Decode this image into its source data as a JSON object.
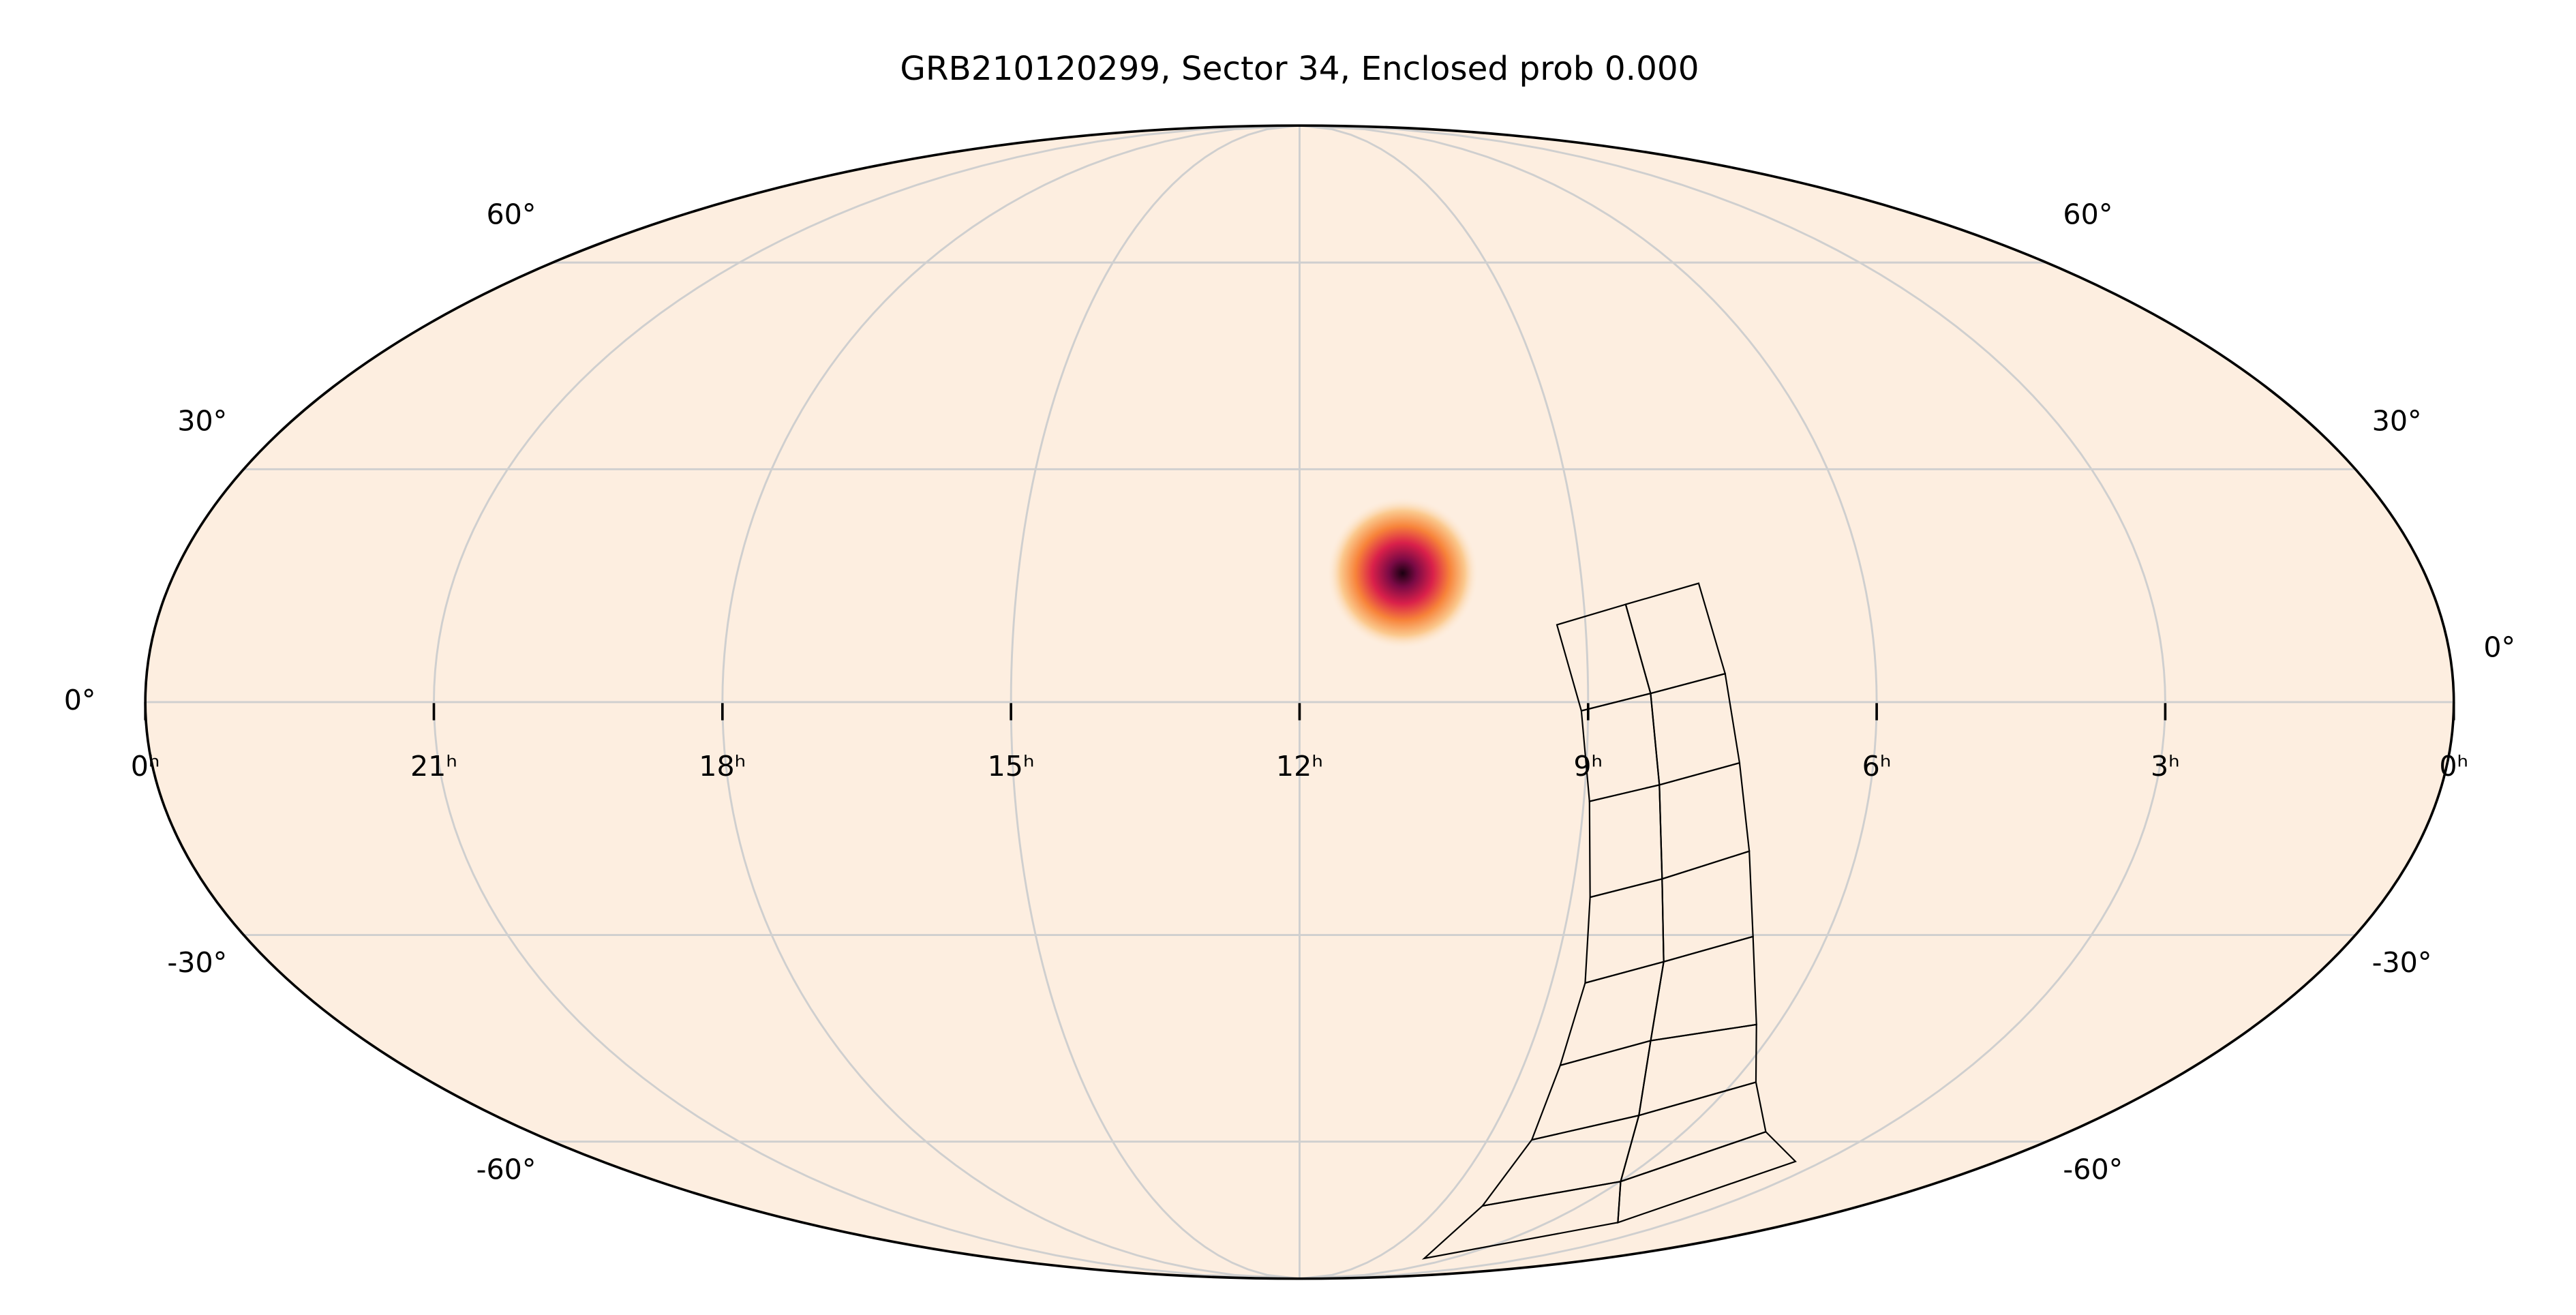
{
  "chart_data": {
    "type": "mollweide",
    "title": "GRB210120299, Sector 34, Enclosed prob 0.000",
    "background": "#fdeee0",
    "grid": true,
    "xticks": [
      {
        "value": 24,
        "label": "0ʰ"
      },
      {
        "value": 21,
        "label": "21ʰ"
      },
      {
        "value": 18,
        "label": "18ʰ"
      },
      {
        "value": 15,
        "label": "15ʰ"
      },
      {
        "value": 12,
        "label": "12ʰ"
      },
      {
        "value": 9,
        "label": "9ʰ"
      },
      {
        "value": 6,
        "label": "6ʰ"
      },
      {
        "value": 3,
        "label": "3ʰ"
      },
      {
        "value": 0,
        "label": "0ʰ"
      }
    ],
    "yticks": [
      {
        "value": 60,
        "label": "60°"
      },
      {
        "value": 30,
        "label": "30°"
      },
      {
        "value": 0,
        "label": "0°"
      },
      {
        "value": -30,
        "label": "-30°"
      },
      {
        "value": -60,
        "label": "-60°"
      }
    ],
    "localization": {
      "ra": 10.9,
      "dec": 16.4
    },
    "footprint": [
      [
        [
          9.3,
          9.8
        ],
        [
          8.56,
          12.4
        ],
        [
          7.76,
          15.1
        ]
      ],
      [
        [
          9.07,
          -1.1
        ],
        [
          8.35,
          1.1
        ],
        [
          7.57,
          3.6
        ]
      ],
      [
        [
          8.94,
          -12.6
        ],
        [
          8.22,
          -10.5
        ],
        [
          7.4,
          -7.7
        ]
      ],
      [
        [
          8.79,
          -25.0
        ],
        [
          8.04,
          -22.6
        ],
        [
          7.16,
          -19.0
        ]
      ],
      [
        [
          8.6,
          -36.5
        ],
        [
          7.76,
          -33.6
        ],
        [
          6.84,
          -30.2
        ]
      ],
      [
        [
          8.51,
          -48.2
        ],
        [
          7.49,
          -44.6
        ],
        [
          6.27,
          -42.3
        ]
      ],
      [
        [
          8.29,
          -59.7
        ],
        [
          6.94,
          -55.8
        ],
        [
          5.69,
          -50.7
        ]
      ],
      [
        [
          8.09,
          -71.3
        ],
        [
          5.99,
          -66.8
        ],
        [
          4.73,
          -58.4
        ]
      ],
      [
        [
          7.07,
          -82.8
        ],
        [
          4.31,
          -74.6
        ],
        [
          3.47,
          -63.3
        ]
      ]
    ]
  }
}
